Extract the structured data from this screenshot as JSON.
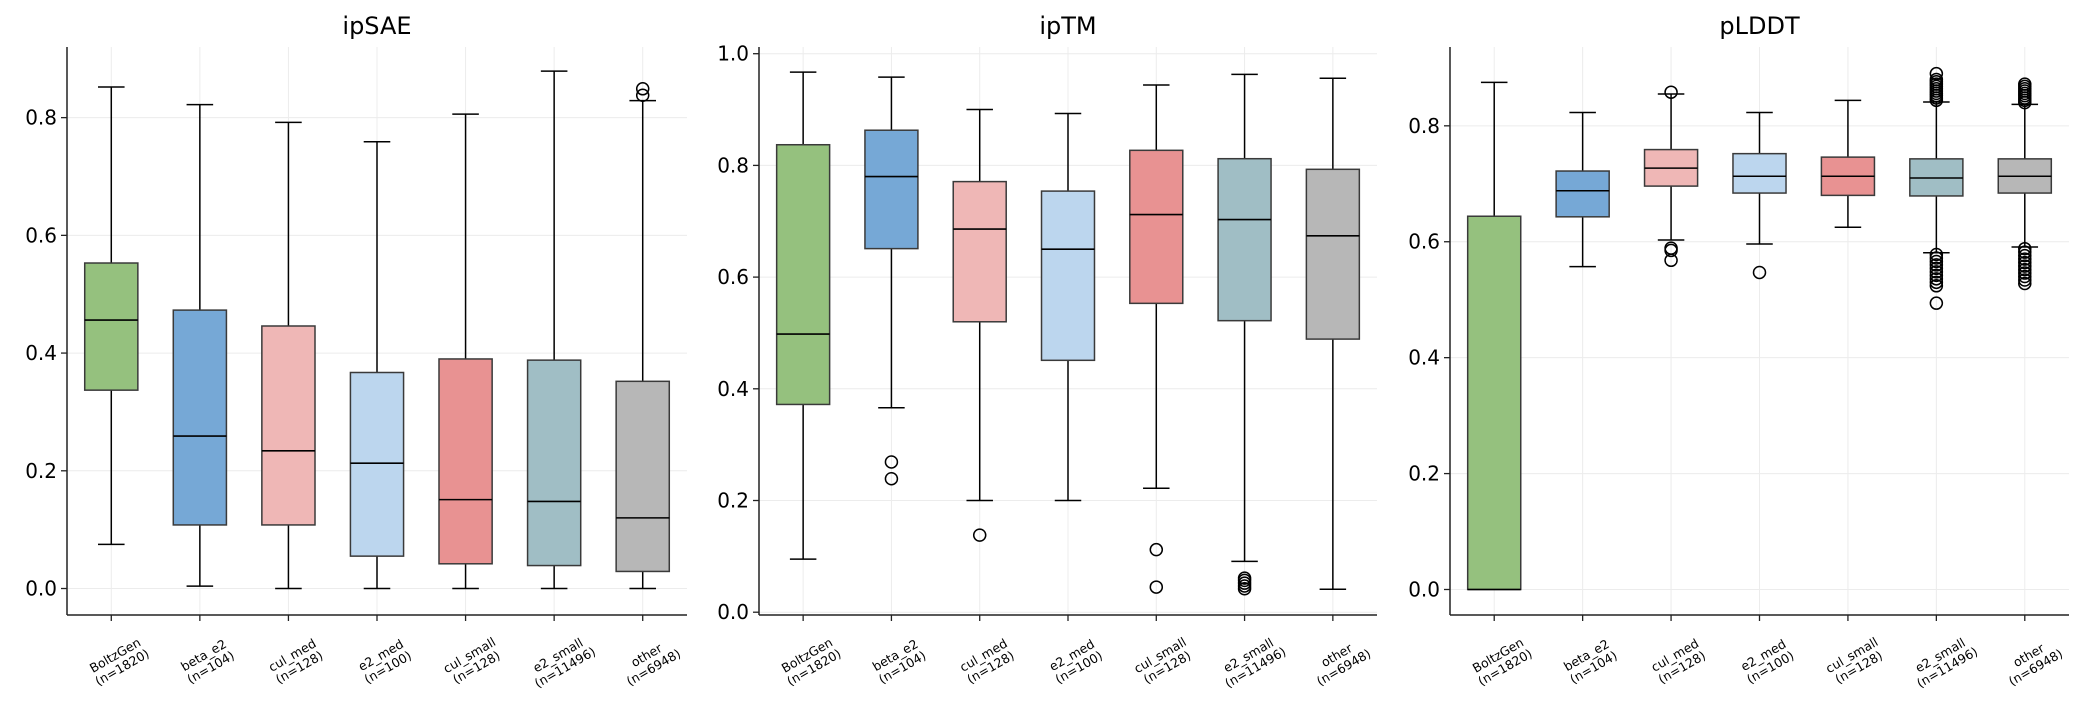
{
  "chart_data": [
    {
      "type": "box",
      "title": "ipSAE",
      "categories": [
        "BoltzGen\n(n=1820)",
        "beta_e2\n(n=104)",
        "cul_med\n(n=128)",
        "e2_med\n(n=100)",
        "cul_small\n(n=128)",
        "e2_small\n(n=11496)",
        "other\n(n=6948)"
      ],
      "ylim": [
        -0.045,
        0.92
      ],
      "yticks": [
        0.0,
        0.2,
        0.4,
        0.6,
        0.8
      ],
      "ytick_labels": [
        "0.0",
        "0.2",
        "0.4",
        "0.6",
        "0.8"
      ],
      "grid": true,
      "boxes": [
        {
          "whislo": 0.075,
          "q1": 0.337,
          "med": 0.456,
          "q3": 0.553,
          "whishi": 0.852,
          "fliers": []
        },
        {
          "whislo": 0.004,
          "q1": 0.108,
          "med": 0.259,
          "q3": 0.473,
          "whishi": 0.822,
          "fliers": []
        },
        {
          "whislo": 0.0,
          "q1": 0.108,
          "med": 0.234,
          "q3": 0.446,
          "whishi": 0.792,
          "fliers": []
        },
        {
          "whislo": 0.0,
          "q1": 0.055,
          "med": 0.213,
          "q3": 0.367,
          "whishi": 0.759,
          "fliers": []
        },
        {
          "whislo": 0.0,
          "q1": 0.042,
          "med": 0.151,
          "q3": 0.39,
          "whishi": 0.806,
          "fliers": []
        },
        {
          "whislo": 0.0,
          "q1": 0.039,
          "med": 0.148,
          "q3": 0.388,
          "whishi": 0.879,
          "fliers": []
        },
        {
          "whislo": 0.0,
          "q1": 0.029,
          "med": 0.12,
          "q3": 0.352,
          "whishi": 0.829,
          "fliers": [
            0.838,
            0.849
          ]
        }
      ]
    },
    {
      "type": "box",
      "title": "ipTM",
      "categories": [
        "BoltzGen\n(n=1820)",
        "beta_e2\n(n=104)",
        "cul_med\n(n=128)",
        "e2_med\n(n=100)",
        "cul_small\n(n=128)",
        "e2_small\n(n=11496)",
        "other\n(n=6948)"
      ],
      "ylim": [
        -0.005,
        1.012
      ],
      "yticks": [
        0.0,
        0.2,
        0.4,
        0.6,
        0.8,
        1.0
      ],
      "ytick_labels": [
        "0.0",
        "0.2",
        "0.4",
        "0.6",
        "0.8",
        "1.0"
      ],
      "grid": true,
      "boxes": [
        {
          "whislo": 0.095,
          "q1": 0.372,
          "med": 0.498,
          "q3": 0.837,
          "whishi": 0.967,
          "fliers": []
        },
        {
          "whislo": 0.366,
          "q1": 0.651,
          "med": 0.78,
          "q3": 0.863,
          "whishi": 0.958,
          "fliers": [
            0.269,
            0.239
          ]
        },
        {
          "whislo": 0.2,
          "q1": 0.52,
          "med": 0.686,
          "q3": 0.771,
          "whishi": 0.9,
          "fliers": [
            0.138
          ]
        },
        {
          "whislo": 0.2,
          "q1": 0.451,
          "med": 0.65,
          "q3": 0.754,
          "whishi": 0.893,
          "fliers": []
        },
        {
          "whislo": 0.222,
          "q1": 0.553,
          "med": 0.712,
          "q3": 0.827,
          "whishi": 0.944,
          "fliers": [
            0.112,
            0.045
          ]
        },
        {
          "whislo": 0.091,
          "q1": 0.522,
          "med": 0.703,
          "q3": 0.812,
          "whishi": 0.963,
          "fliers": [
            0.042,
            0.047,
            0.052,
            0.057,
            0.061
          ]
        },
        {
          "whislo": 0.041,
          "q1": 0.489,
          "med": 0.674,
          "q3": 0.793,
          "whishi": 0.956,
          "fliers": []
        }
      ]
    },
    {
      "type": "box",
      "title": "pLDDT",
      "categories": [
        "BoltzGen\n(n=1820)",
        "beta_e2\n(n=104)",
        "cul_med\n(n=128)",
        "e2_med\n(n=100)",
        "cul_small\n(n=128)",
        "e2_small\n(n=11496)",
        "other\n(n=6948)"
      ],
      "ylim": [
        -0.044,
        0.936
      ],
      "yticks": [
        0.0,
        0.2,
        0.4,
        0.6,
        0.8
      ],
      "ytick_labels": [
        "0.0",
        "0.2",
        "0.4",
        "0.6",
        "0.8"
      ],
      "grid": true,
      "boxes": [
        {
          "whislo": 0.0,
          "q1": 0.0,
          "med": 0.0,
          "q3": 0.644,
          "whishi": 0.875,
          "fliers": []
        },
        {
          "whislo": 0.557,
          "q1": 0.643,
          "med": 0.688,
          "q3": 0.722,
          "whishi": 0.823,
          "fliers": []
        },
        {
          "whislo": 0.603,
          "q1": 0.696,
          "med": 0.727,
          "q3": 0.759,
          "whishi": 0.855,
          "fliers": [
            0.858,
            0.589,
            0.585,
            0.568
          ]
        },
        {
          "whislo": 0.596,
          "q1": 0.684,
          "med": 0.713,
          "q3": 0.752,
          "whishi": 0.823,
          "fliers": [
            0.547
          ]
        },
        {
          "whislo": 0.625,
          "q1": 0.68,
          "med": 0.713,
          "q3": 0.746,
          "whishi": 0.844,
          "fliers": []
        },
        {
          "whislo": 0.581,
          "q1": 0.679,
          "med": 0.71,
          "q3": 0.743,
          "whishi": 0.841,
          "fliers": [
            0.844,
            0.848,
            0.852,
            0.856,
            0.86,
            0.864,
            0.868,
            0.872,
            0.876,
            0.88,
            0.89,
            0.578,
            0.572,
            0.566,
            0.56,
            0.554,
            0.548,
            0.542,
            0.536,
            0.53,
            0.524,
            0.494
          ]
        },
        {
          "whislo": 0.591,
          "q1": 0.684,
          "med": 0.713,
          "q3": 0.743,
          "whishi": 0.837,
          "fliers": [
            0.84,
            0.844,
            0.848,
            0.852,
            0.856,
            0.86,
            0.864,
            0.868,
            0.872,
            0.588,
            0.582,
            0.576,
            0.57,
            0.564,
            0.558,
            0.552,
            0.546,
            0.54,
            0.534,
            0.528
          ]
        }
      ]
    }
  ],
  "colors": [
    "#95c17e",
    "#76a8d6",
    "#efb7b6",
    "#bcd6ee",
    "#e89292",
    "#a0bec5",
    "#b7b7b7"
  ],
  "box_edge_color": "#3a3a3a"
}
